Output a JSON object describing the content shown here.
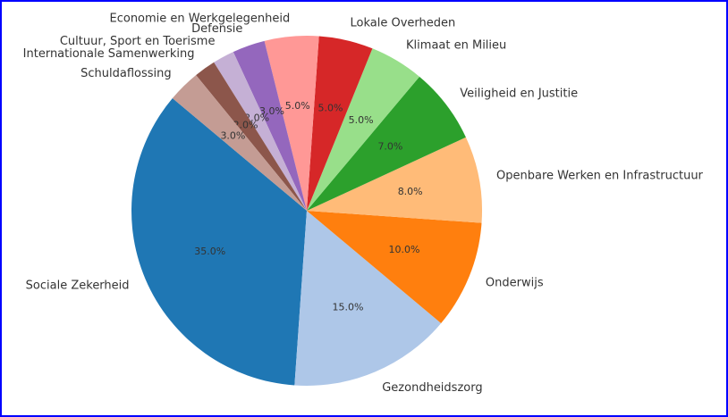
{
  "chart_data": {
    "type": "pie",
    "title": "",
    "start_angle_deg": 140,
    "direction": "counterclockwise",
    "categories": [
      "Sociale Zekerheid",
      "Gezondheidszorg",
      "Onderwijs",
      "Openbare Werken en Infrastructuur",
      "Veiligheid en Justitie",
      "Klimaat en Milieu",
      "Lokale Overheden",
      "Economie en Werkgelegenheid",
      "Defensie",
      "Cultuur, Sport en Toerisme",
      "Internationale Samenwerking",
      "Schuldaflossing"
    ],
    "values": [
      35,
      15,
      10,
      8,
      7,
      5,
      5,
      5,
      3,
      2,
      2,
      3
    ],
    "value_labels": [
      "35.0%",
      "15.0%",
      "10.0%",
      "8.0%",
      "7.0%",
      "5.0%",
      "5.0%",
      "5.0%",
      "3.0%",
      "2.0%",
      "2.0%",
      "3.0%"
    ],
    "colors": [
      "#1f77b4",
      "#aec7e8",
      "#ff7f0e",
      "#ffbb78",
      "#2ca02c",
      "#98df8a",
      "#d62728",
      "#ff9896",
      "#9467bd",
      "#c5b0d5",
      "#8c564b",
      "#c49c94"
    ]
  }
}
